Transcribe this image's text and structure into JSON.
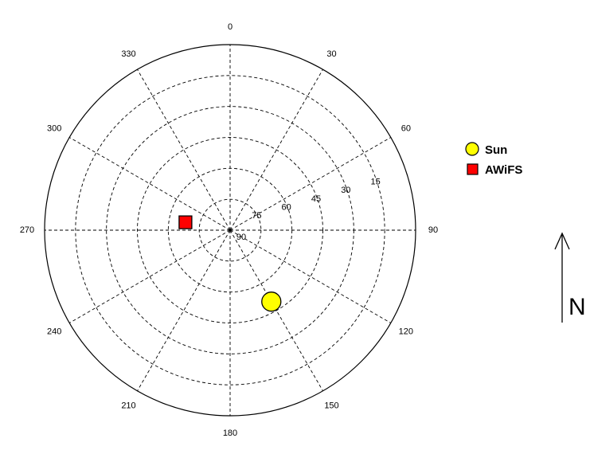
{
  "chart_data": {
    "type": "scatter",
    "coordinate_system": "polar",
    "angular_axis": {
      "direction": "clockwise",
      "zero_at": "top",
      "ticks": [
        {
          "angle": 0,
          "label": "0"
        },
        {
          "angle": 30,
          "label": "30"
        },
        {
          "angle": 60,
          "label": "60"
        },
        {
          "angle": 90,
          "label": "90"
        },
        {
          "angle": 120,
          "label": "120"
        },
        {
          "angle": 150,
          "label": "150"
        },
        {
          "angle": 180,
          "label": "180"
        },
        {
          "angle": 210,
          "label": "210"
        },
        {
          "angle": 240,
          "label": "240"
        },
        {
          "angle": 270,
          "label": "270"
        },
        {
          "angle": 300,
          "label": "300"
        },
        {
          "angle": 330,
          "label": "330"
        }
      ]
    },
    "radial_axis": {
      "quantity": "elevation",
      "center_value": 90,
      "outer_value": 0,
      "rings": [
        {
          "value": 15,
          "label": "15"
        },
        {
          "value": 30,
          "label": "30"
        },
        {
          "value": 45,
          "label": "45"
        },
        {
          "value": 60,
          "label": "60"
        },
        {
          "value": 75,
          "label": "75"
        },
        {
          "value": 90,
          "label": "90"
        }
      ]
    },
    "grid": true,
    "legend_position": "right",
    "series": [
      {
        "name": "Sun",
        "azimuth": 150,
        "elevation": 50,
        "marker": "circle",
        "color": "#ffff00"
      },
      {
        "name": "AWiFS",
        "azimuth": 280,
        "elevation": 68,
        "marker": "square",
        "color": "#ff0000"
      }
    ]
  },
  "north_arrow": {
    "label": "N"
  }
}
